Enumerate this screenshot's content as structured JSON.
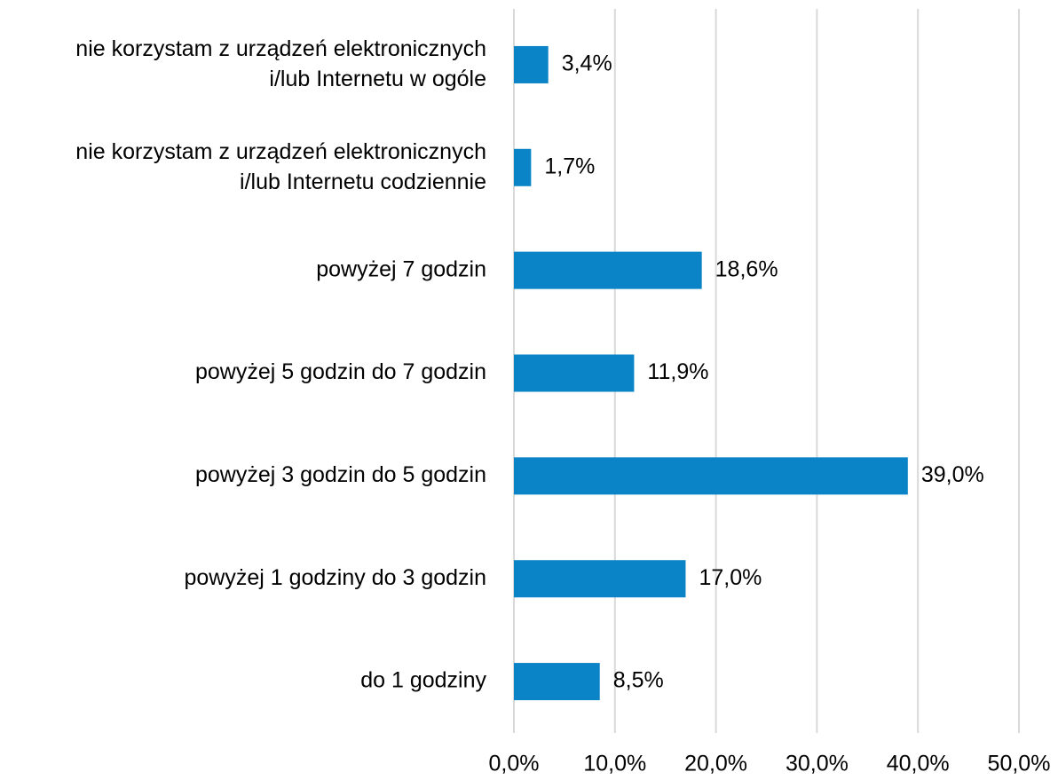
{
  "chart_data": {
    "type": "bar",
    "orientation": "horizontal",
    "categories": [
      "nie korzystam z urządzeń elektronicznych\ni/lub Internetu w ogóle",
      "nie korzystam z urządzeń elektronicznych\ni/lub Internetu codziennie",
      "powyżej 7 godzin",
      "powyżej 5 godzin do 7 godzin",
      "powyżej 3 godzin do 5 godzin",
      "powyżej 1 godziny do 3 godzin",
      "do 1 godziny"
    ],
    "values": [
      3.4,
      1.7,
      18.6,
      11.9,
      39.0,
      17.0,
      8.5
    ],
    "value_labels": [
      "3,4%",
      "1,7%",
      "18,6%",
      "11,9%",
      "39,0%",
      "17,0%",
      "8,5%"
    ],
    "color": "#0a84c6",
    "xlim": [
      0,
      50
    ],
    "xticks": [
      {
        "value": 0,
        "label": "0,0%"
      },
      {
        "value": 10,
        "label": "10,0%"
      },
      {
        "value": 20,
        "label": "20,0%"
      },
      {
        "value": 30,
        "label": "30,0%"
      },
      {
        "value": 40,
        "label": "40,0%"
      },
      {
        "value": 50,
        "label": "50,0%"
      }
    ],
    "grid": true
  }
}
